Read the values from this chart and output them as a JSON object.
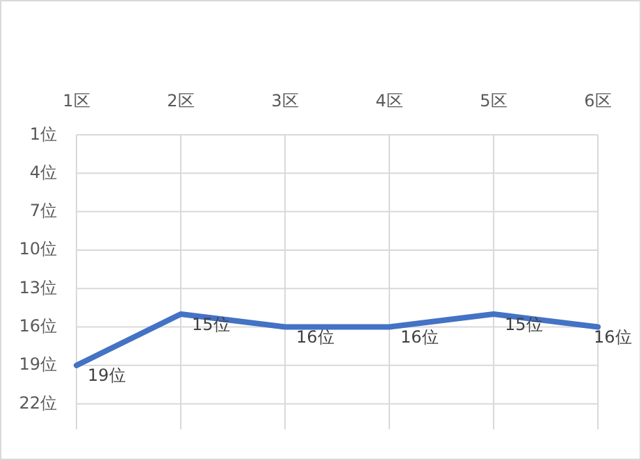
{
  "chart_data": {
    "type": "line",
    "categories": [
      "1区",
      "2区",
      "3区",
      "4区",
      "5区",
      "6区"
    ],
    "series": [
      {
        "color": "#4472c4",
        "values": [
          19,
          15,
          16,
          16,
          15,
          16
        ],
        "value_labels": [
          "19位",
          "15位",
          "16位",
          "16位",
          "15位",
          "16位"
        ]
      }
    ],
    "ylim": [
      24,
      1
    ],
    "yticks": [
      {
        "value": 1,
        "label": "1位"
      },
      {
        "value": 4,
        "label": "4位"
      },
      {
        "value": 7,
        "label": "7位"
      },
      {
        "value": 10,
        "label": "10位"
      },
      {
        "value": 13,
        "label": "13位"
      },
      {
        "value": 16,
        "label": "16位"
      },
      {
        "value": 19,
        "label": "19位"
      },
      {
        "value": 22,
        "label": "22位"
      }
    ],
    "grid": true,
    "marker": "none",
    "line_style": "solid"
  }
}
